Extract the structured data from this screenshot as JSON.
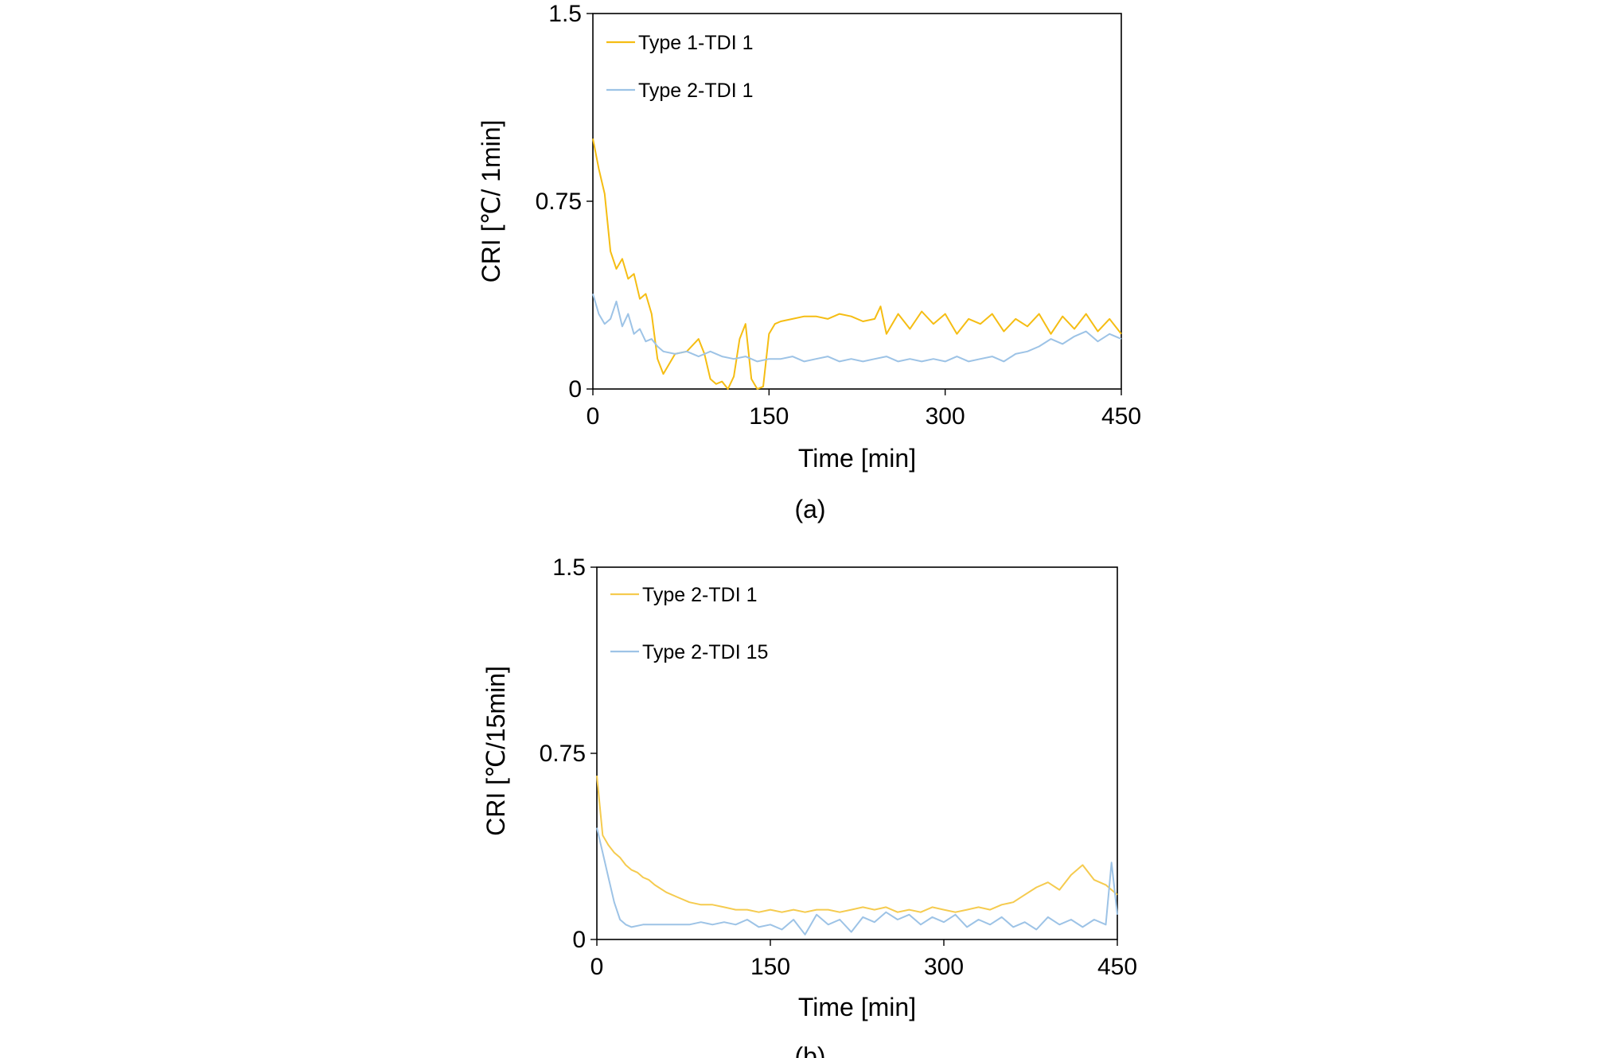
{
  "chart_data": [
    {
      "type": "line",
      "caption": "(a)",
      "xlabel": "Time [min]",
      "ylabel": "CRI [℃/ 1min]",
      "xlim": [
        0,
        450
      ],
      "ylim": [
        0,
        1.5
      ],
      "xticks": [
        "0",
        "150",
        "300",
        "450"
      ],
      "yticks": [
        "0",
        "0.75",
        "1.5"
      ],
      "legend_position": "top-left",
      "grid": false,
      "series": [
        {
          "name": "Type 1-TDI 1",
          "color": "#f5bd13",
          "x": [
            0,
            5,
            10,
            15,
            20,
            25,
            30,
            35,
            40,
            45,
            50,
            55,
            60,
            70,
            80,
            90,
            95,
            100,
            105,
            110,
            115,
            120,
            125,
            130,
            135,
            140,
            145,
            150,
            155,
            160,
            170,
            180,
            190,
            200,
            210,
            220,
            230,
            240,
            245,
            250,
            260,
            270,
            280,
            290,
            300,
            310,
            320,
            330,
            340,
            350,
            360,
            370,
            380,
            390,
            400,
            410,
            420,
            430,
            440,
            450
          ],
          "y": [
            1.0,
            0.88,
            0.78,
            0.55,
            0.48,
            0.52,
            0.44,
            0.46,
            0.36,
            0.38,
            0.3,
            0.12,
            0.06,
            0.14,
            0.15,
            0.2,
            0.14,
            0.04,
            0.02,
            0.03,
            0.0,
            0.05,
            0.2,
            0.26,
            0.04,
            0.0,
            0.01,
            0.22,
            0.26,
            0.27,
            0.28,
            0.29,
            0.29,
            0.28,
            0.3,
            0.29,
            0.27,
            0.28,
            0.33,
            0.22,
            0.3,
            0.24,
            0.31,
            0.26,
            0.3,
            0.22,
            0.28,
            0.26,
            0.3,
            0.23,
            0.28,
            0.25,
            0.3,
            0.22,
            0.29,
            0.24,
            0.3,
            0.23,
            0.28,
            0.22
          ]
        },
        {
          "name": "Type 2-TDI 1",
          "color": "#9dc3e6",
          "x": [
            0,
            5,
            10,
            15,
            20,
            25,
            30,
            35,
            40,
            45,
            50,
            55,
            60,
            70,
            80,
            90,
            100,
            110,
            120,
            130,
            140,
            150,
            160,
            170,
            180,
            190,
            200,
            210,
            220,
            230,
            240,
            250,
            260,
            270,
            280,
            290,
            300,
            310,
            320,
            330,
            340,
            350,
            360,
            370,
            380,
            390,
            400,
            410,
            420,
            430,
            440,
            450
          ],
          "y": [
            0.38,
            0.3,
            0.26,
            0.28,
            0.35,
            0.25,
            0.3,
            0.22,
            0.24,
            0.19,
            0.2,
            0.17,
            0.15,
            0.14,
            0.15,
            0.13,
            0.15,
            0.13,
            0.12,
            0.13,
            0.11,
            0.12,
            0.12,
            0.13,
            0.11,
            0.12,
            0.13,
            0.11,
            0.12,
            0.11,
            0.12,
            0.13,
            0.11,
            0.12,
            0.11,
            0.12,
            0.11,
            0.13,
            0.11,
            0.12,
            0.13,
            0.11,
            0.14,
            0.15,
            0.17,
            0.2,
            0.18,
            0.21,
            0.23,
            0.19,
            0.22,
            0.2
          ]
        }
      ]
    },
    {
      "type": "line",
      "caption": "(b)",
      "xlabel": "Time [min]",
      "ylabel": "CRI [℃/15min]",
      "xlim": [
        0,
        450
      ],
      "ylim": [
        0,
        1.5
      ],
      "xticks": [
        "0",
        "150",
        "300",
        "450"
      ],
      "yticks": [
        "0",
        "0.75",
        "1.5"
      ],
      "legend_position": "top-left",
      "grid": false,
      "series": [
        {
          "name": "Type 2-TDI 1",
          "color": "#f5cb4f",
          "x": [
            0,
            5,
            10,
            15,
            20,
            25,
            30,
            35,
            40,
            45,
            50,
            60,
            70,
            80,
            90,
            100,
            110,
            120,
            130,
            140,
            150,
            160,
            170,
            180,
            190,
            200,
            210,
            220,
            230,
            240,
            250,
            260,
            270,
            280,
            290,
            300,
            310,
            320,
            330,
            340,
            350,
            360,
            370,
            380,
            390,
            400,
            410,
            420,
            430,
            440,
            450
          ],
          "y": [
            0.66,
            0.42,
            0.38,
            0.35,
            0.33,
            0.3,
            0.28,
            0.27,
            0.25,
            0.24,
            0.22,
            0.19,
            0.17,
            0.15,
            0.14,
            0.14,
            0.13,
            0.12,
            0.12,
            0.11,
            0.12,
            0.11,
            0.12,
            0.11,
            0.12,
            0.12,
            0.11,
            0.12,
            0.13,
            0.12,
            0.13,
            0.11,
            0.12,
            0.11,
            0.13,
            0.12,
            0.11,
            0.12,
            0.13,
            0.12,
            0.14,
            0.15,
            0.18,
            0.21,
            0.23,
            0.2,
            0.26,
            0.3,
            0.24,
            0.22,
            0.18
          ]
        },
        {
          "name": "Type 2-TDI 15",
          "color": "#9dc3e6",
          "x": [
            0,
            5,
            10,
            15,
            20,
            25,
            30,
            40,
            50,
            60,
            70,
            80,
            90,
            100,
            110,
            120,
            130,
            140,
            150,
            160,
            170,
            180,
            190,
            200,
            210,
            220,
            230,
            240,
            250,
            260,
            270,
            280,
            290,
            300,
            310,
            320,
            330,
            340,
            350,
            360,
            370,
            380,
            390,
            400,
            410,
            420,
            430,
            440,
            445,
            450
          ],
          "y": [
            0.45,
            0.35,
            0.25,
            0.15,
            0.08,
            0.06,
            0.05,
            0.06,
            0.06,
            0.06,
            0.06,
            0.06,
            0.07,
            0.06,
            0.07,
            0.06,
            0.08,
            0.05,
            0.06,
            0.04,
            0.08,
            0.02,
            0.1,
            0.06,
            0.08,
            0.03,
            0.09,
            0.07,
            0.11,
            0.08,
            0.1,
            0.06,
            0.09,
            0.07,
            0.1,
            0.05,
            0.08,
            0.06,
            0.09,
            0.05,
            0.07,
            0.04,
            0.09,
            0.06,
            0.08,
            0.05,
            0.08,
            0.06,
            0.31,
            0.1
          ]
        }
      ]
    }
  ]
}
